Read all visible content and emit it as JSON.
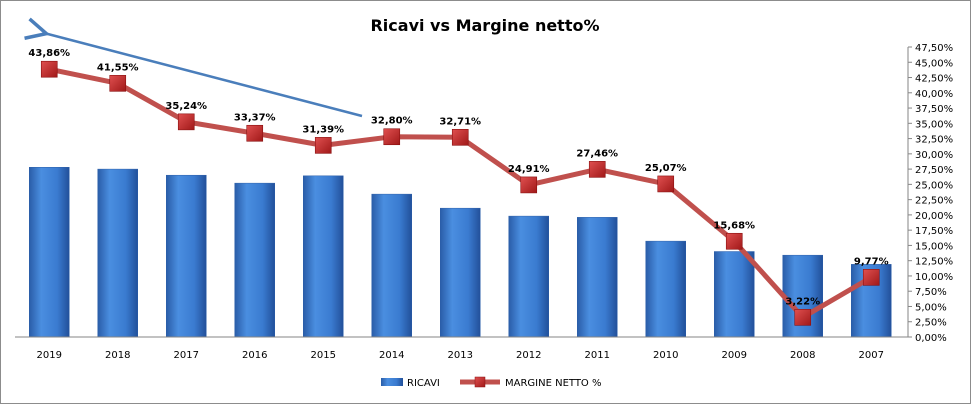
{
  "chart_data": {
    "type": "bar+line",
    "title": "Ricavi vs Margine netto%",
    "categories": [
      "2019",
      "2018",
      "2017",
      "2016",
      "2015",
      "2014",
      "2013",
      "2012",
      "2011",
      "2010",
      "2009",
      "2008",
      "2007"
    ],
    "series": [
      {
        "name": "RICAVI",
        "type": "bar",
        "axis": "primary (hidden)",
        "note": "relative values, no axis shown",
        "values": [
          27.8,
          27.5,
          26.5,
          25.2,
          26.4,
          23.4,
          21.1,
          19.8,
          19.6,
          15.7,
          14.0,
          13.4,
          11.9
        ]
      },
      {
        "name": "MARGINE NETTO %",
        "type": "line",
        "axis": "secondary",
        "values": [
          43.86,
          41.55,
          35.24,
          33.37,
          31.39,
          32.8,
          32.71,
          24.91,
          27.46,
          25.07,
          15.68,
          3.22,
          9.77
        ],
        "labels": [
          "43,86%",
          "41,55%",
          "35,24%",
          "33,37%",
          "31,39%",
          "32,80%",
          "32,71%",
          "24,91%",
          "27,46%",
          "25,07%",
          "15,68%",
          "3,22%",
          "9,77%"
        ]
      }
    ],
    "y2_ticks": [
      "0,00%",
      "2,50%",
      "5,00%",
      "7,50%",
      "10,00%",
      "12,50%",
      "15,00%",
      "17,50%",
      "20,00%",
      "22,50%",
      "25,00%",
      "27,50%",
      "30,00%",
      "32,50%",
      "35,00%",
      "37,50%",
      "40,00%",
      "42,50%",
      "45,00%",
      "47,50%"
    ],
    "y2lim": [
      0,
      47.5
    ],
    "legend": {
      "position": "bottom",
      "entries": [
        "RICAVI",
        "MARGINE NETTO %"
      ]
    },
    "annotation": "trend arrow from 2014 pointing up-left toward 2019",
    "colors": {
      "bar": "#3c78c8",
      "line": "#c0504d",
      "marker": "#c0282a",
      "arrow": "#4a7ebb"
    }
  }
}
